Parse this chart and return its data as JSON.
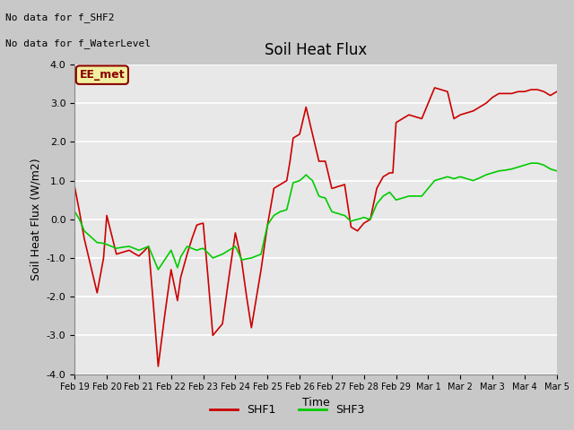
{
  "title": "Soil Heat Flux",
  "ylabel": "Soil Heat Flux (W/m2)",
  "xlabel": "Time",
  "ylim": [
    -4.0,
    4.0
  ],
  "yticks": [
    -4.0,
    -3.0,
    -2.0,
    -1.0,
    0.0,
    1.0,
    2.0,
    3.0,
    4.0
  ],
  "fig_bg_color": "#c8c8c8",
  "plot_bg_color": "#e8e8e8",
  "no_data_text1": "No data for f_SHF2",
  "no_data_text2": "No data for f_WaterLevel",
  "ee_met_label": "EE_met",
  "legend_labels": [
    "SHF1",
    "SHF3"
  ],
  "shf1_color": "#cc0000",
  "shf3_color": "#00cc00",
  "xtick_labels": [
    "Feb 19",
    "Feb 20",
    "Feb 21",
    "Feb 22",
    "Feb 23",
    "Feb 24",
    "Feb 25",
    "Feb 26",
    "Feb 27",
    "Feb 28",
    "Feb 29",
    "Mar 1",
    "Mar 2",
    "Mar 3",
    "Mar 4",
    "Mar 5"
  ],
  "shf1_x": [
    0,
    0.15,
    0.3,
    0.5,
    0.7,
    0.9,
    1.0,
    1.15,
    1.3,
    1.5,
    1.7,
    1.85,
    2.0,
    2.15,
    2.3,
    2.45,
    2.6,
    2.8,
    3.0,
    3.1,
    3.2,
    3.3,
    3.5,
    3.65,
    3.8,
    3.9,
    4.0,
    4.15,
    4.3,
    4.45,
    4.6,
    4.8,
    5.0,
    5.1,
    5.2,
    5.35,
    5.5,
    5.65,
    5.8,
    5.9,
    6.0,
    6.1,
    6.2,
    6.3,
    6.4,
    6.5,
    6.6,
    6.7,
    6.8,
    6.9,
    7.0,
    7.1,
    7.2,
    7.3,
    7.4,
    7.5,
    7.6,
    7.7,
    7.8,
    7.9,
    8.0,
    8.1,
    8.2,
    8.3,
    8.4,
    8.5,
    8.6,
    8.7,
    8.8,
    8.9,
    9.0,
    9.1,
    9.2,
    9.3,
    9.4,
    9.5,
    9.6,
    9.7,
    9.8,
    9.9,
    10.0,
    10.2,
    10.4,
    10.6,
    10.8,
    11.0,
    11.2,
    11.4,
    11.6,
    11.8,
    12.0,
    12.2,
    12.4,
    12.6,
    12.8,
    13.0,
    13.2,
    13.4,
    13.6,
    13.8,
    14.0,
    14.2,
    14.4,
    14.6,
    14.8,
    15.0
  ],
  "shf1_y": [
    0.85,
    0.2,
    -0.5,
    -1.2,
    -1.9,
    -1.0,
    0.1,
    -0.4,
    -0.9,
    -0.85,
    -0.8,
    -0.88,
    -0.95,
    -0.83,
    -0.7,
    -2.2,
    -3.8,
    -2.5,
    -1.3,
    -1.7,
    -2.1,
    -1.5,
    -0.9,
    -0.5,
    -0.15,
    -0.12,
    -0.1,
    -1.5,
    -3.0,
    -2.85,
    -2.7,
    -1.5,
    -0.35,
    -0.72,
    -1.1,
    -2.0,
    -2.8,
    -2.05,
    -1.3,
    -0.72,
    -0.15,
    0.32,
    0.8,
    0.85,
    0.9,
    0.95,
    1.0,
    1.5,
    2.1,
    2.15,
    2.2,
    2.55,
    2.9,
    2.55,
    2.2,
    1.85,
    1.5,
    1.5,
    1.5,
    1.15,
    0.8,
    0.82,
    0.85,
    0.87,
    0.9,
    0.35,
    -0.2,
    -0.25,
    -0.3,
    -0.2,
    -0.1,
    -0.05,
    0.0,
    0.4,
    0.8,
    0.95,
    1.1,
    1.15,
    1.2,
    1.2,
    2.5,
    2.6,
    2.7,
    2.65,
    2.6,
    3.0,
    3.4,
    3.35,
    3.3,
    2.6,
    2.7,
    2.75,
    2.8,
    2.9,
    3.0,
    3.15,
    3.25,
    3.25,
    3.25,
    3.3,
    3.3,
    3.35,
    3.35,
    3.3,
    3.2,
    3.3
  ],
  "shf3_x": [
    0,
    0.15,
    0.3,
    0.5,
    0.7,
    0.9,
    1.0,
    1.15,
    1.3,
    1.5,
    1.7,
    1.85,
    2.0,
    2.15,
    2.3,
    2.45,
    2.6,
    2.8,
    3.0,
    3.1,
    3.2,
    3.3,
    3.5,
    3.65,
    3.8,
    3.9,
    4.0,
    4.15,
    4.3,
    4.45,
    4.6,
    4.8,
    5.0,
    5.1,
    5.2,
    5.35,
    5.5,
    5.65,
    5.8,
    5.9,
    6.0,
    6.1,
    6.2,
    6.3,
    6.4,
    6.5,
    6.6,
    6.7,
    6.8,
    6.9,
    7.0,
    7.1,
    7.2,
    7.3,
    7.4,
    7.5,
    7.6,
    7.7,
    7.8,
    7.9,
    8.0,
    8.1,
    8.2,
    8.3,
    8.4,
    8.5,
    8.6,
    8.7,
    8.8,
    8.9,
    9.0,
    9.1,
    9.2,
    9.3,
    9.4,
    9.5,
    9.6,
    9.7,
    9.8,
    9.9,
    10.0,
    10.2,
    10.4,
    10.6,
    10.8,
    11.0,
    11.2,
    11.4,
    11.6,
    11.8,
    12.0,
    12.2,
    12.4,
    12.6,
    12.8,
    13.0,
    13.2,
    13.4,
    13.6,
    13.8,
    14.0,
    14.2,
    14.4,
    14.6,
    14.8,
    15.0
  ],
  "shf3_y": [
    0.2,
    0.0,
    -0.3,
    -0.45,
    -0.6,
    -0.62,
    -0.65,
    -0.7,
    -0.75,
    -0.72,
    -0.7,
    -0.75,
    -0.8,
    -0.75,
    -0.7,
    -1.0,
    -1.3,
    -1.05,
    -0.8,
    -1.02,
    -1.25,
    -0.97,
    -0.7,
    -0.75,
    -0.8,
    -0.77,
    -0.75,
    -0.87,
    -1.0,
    -0.95,
    -0.9,
    -0.8,
    -0.7,
    -0.87,
    -1.05,
    -1.02,
    -1.0,
    -0.95,
    -0.9,
    -0.52,
    -0.15,
    -0.02,
    0.1,
    0.15,
    0.2,
    0.22,
    0.25,
    0.6,
    0.95,
    0.97,
    1.0,
    1.07,
    1.15,
    1.07,
    1.0,
    0.8,
    0.6,
    0.57,
    0.55,
    0.37,
    0.2,
    0.17,
    0.15,
    0.12,
    0.1,
    0.02,
    -0.05,
    -0.02,
    0.0,
    0.02,
    0.05,
    0.02,
    0.0,
    0.2,
    0.4,
    0.5,
    0.6,
    0.65,
    0.7,
    0.6,
    0.5,
    0.55,
    0.6,
    0.6,
    0.6,
    0.8,
    1.0,
    1.05,
    1.1,
    1.05,
    1.1,
    1.05,
    1.0,
    1.07,
    1.15,
    1.2,
    1.25,
    1.27,
    1.3,
    1.35,
    1.4,
    1.45,
    1.45,
    1.4,
    1.3,
    1.25
  ]
}
